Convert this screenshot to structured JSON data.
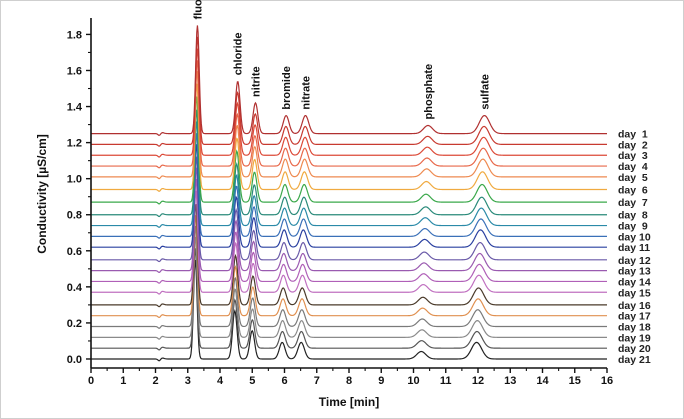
{
  "chart_data": {
    "type": "line",
    "xlabel": "Time [min]",
    "ylabel": "Conductivity [µS/cm]",
    "xlim": [
      0,
      16
    ],
    "ylim": [
      -0.05,
      1.88
    ],
    "x_ticks": [
      "0",
      "1",
      "2",
      "3",
      "4",
      "5",
      "6",
      "7",
      "8",
      "9",
      "10",
      "11",
      "12",
      "13",
      "14",
      "15",
      "16"
    ],
    "y_ticks": [
      "0.0",
      "0.2",
      "0.4",
      "0.6",
      "0.8",
      "1.0",
      "1.2",
      "1.4",
      "1.6",
      "1.8"
    ],
    "grid": false,
    "peaks": [
      {
        "name": "fluoride",
        "time": 3.3,
        "height": 0.6,
        "width": 0.055
      },
      {
        "name": "chloride",
        "time": 4.55,
        "height": 0.29,
        "width": 0.07
      },
      {
        "name": "nitrite",
        "time": 5.1,
        "height": 0.17,
        "width": 0.075
      },
      {
        "name": "bromide",
        "time": 6.05,
        "height": 0.1,
        "width": 0.09
      },
      {
        "name": "nitrate",
        "time": 6.65,
        "height": 0.1,
        "width": 0.1
      },
      {
        "name": "phosphate",
        "time": 10.45,
        "height": 0.045,
        "width": 0.14
      },
      {
        "name": "sulfate",
        "time": 12.2,
        "height": 0.1,
        "width": 0.16
      }
    ],
    "series": [
      {
        "name": "day  1",
        "offset": 1.25,
        "color": "#b03030"
      },
      {
        "name": "day  2",
        "offset": 1.19,
        "color": "#c83a30"
      },
      {
        "name": "day  3",
        "offset": 1.13,
        "color": "#dc4a38"
      },
      {
        "name": "day  4",
        "offset": 1.07,
        "color": "#e8684a"
      },
      {
        "name": "day  5",
        "offset": 1.01,
        "color": "#ee8a50"
      },
      {
        "name": "day  6",
        "offset": 0.94,
        "color": "#f0aa40"
      },
      {
        "name": "day  7",
        "offset": 0.87,
        "color": "#3aa84a"
      },
      {
        "name": "day  8",
        "offset": 0.8,
        "color": "#2a8a7a"
      },
      {
        "name": "day  9",
        "offset": 0.74,
        "color": "#2a8aa8"
      },
      {
        "name": "day 10",
        "offset": 0.68,
        "color": "#3a70b8"
      },
      {
        "name": "day 11",
        "offset": 0.62,
        "color": "#2a40a0"
      },
      {
        "name": "day 12",
        "offset": 0.55,
        "color": "#6a5aa8"
      },
      {
        "name": "day 13",
        "offset": 0.49,
        "color": "#9a5ab0"
      },
      {
        "name": "day 14",
        "offset": 0.43,
        "color": "#b060b8"
      },
      {
        "name": "day 15",
        "offset": 0.37,
        "color": "#c070c0"
      },
      {
        "name": "day 16",
        "offset": 0.3,
        "color": "#4a3a2a"
      },
      {
        "name": "day 17",
        "offset": 0.24,
        "color": "#e09050"
      },
      {
        "name": "day 18",
        "offset": 0.18,
        "color": "#7a7a7a"
      },
      {
        "name": "day 19",
        "offset": 0.12,
        "color": "#8a8a8a"
      },
      {
        "name": "day 20",
        "offset": 0.06,
        "color": "#555555"
      },
      {
        "name": "day 21",
        "offset": 0.0,
        "color": "#222222"
      }
    ]
  }
}
